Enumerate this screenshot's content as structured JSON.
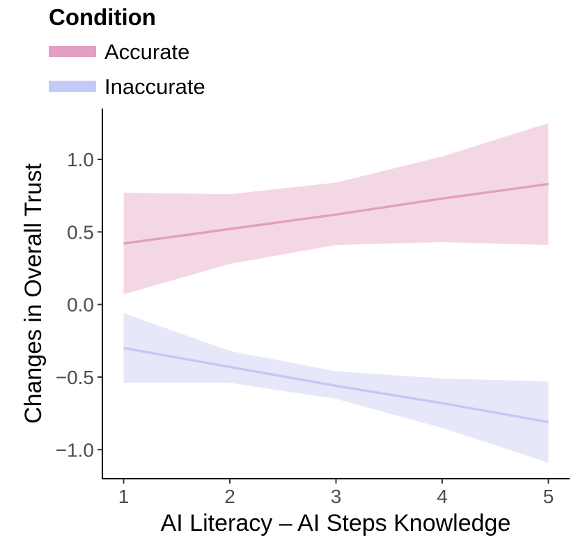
{
  "chart_data": {
    "type": "line",
    "title": "",
    "xlabel": "AI Literacy – AI Steps Knowledge",
    "ylabel": "Changes in Overall Trust",
    "xlim": [
      0.8,
      5.2
    ],
    "ylim": [
      -1.2,
      1.35
    ],
    "x_ticks": [
      1,
      2,
      3,
      4,
      5
    ],
    "x_tick_labels": [
      "1",
      "2",
      "3",
      "4",
      "5"
    ],
    "y_ticks": [
      1.0,
      0.5,
      0.0,
      -0.5,
      -1.0
    ],
    "y_tick_labels": [
      "1.0",
      "0.5",
      "0.0",
      "−0.5",
      "−1.0"
    ],
    "grid": false,
    "legend": {
      "title": "Condition",
      "placement": "top-left"
    },
    "series": [
      {
        "name": "Accurate",
        "color": "#e29fc4",
        "ribbon_color": "#f4d7e5",
        "x": [
          1,
          2,
          3,
          4,
          5
        ],
        "y": [
          0.42,
          0.52,
          0.62,
          0.73,
          0.83
        ],
        "lower": [
          0.07,
          0.28,
          0.41,
          0.43,
          0.41
        ],
        "upper": [
          0.77,
          0.76,
          0.84,
          1.02,
          1.25
        ]
      },
      {
        "name": "Inaccurate",
        "color": "#c4c9f5",
        "ribbon_color": "#e6e8f9",
        "x": [
          1,
          2,
          3,
          4,
          5
        ],
        "y": [
          -0.3,
          -0.43,
          -0.56,
          -0.68,
          -0.81
        ],
        "lower": [
          -0.54,
          -0.54,
          -0.65,
          -0.85,
          -1.09
        ],
        "upper": [
          -0.06,
          -0.32,
          -0.46,
          -0.51,
          -0.53
        ]
      }
    ]
  }
}
